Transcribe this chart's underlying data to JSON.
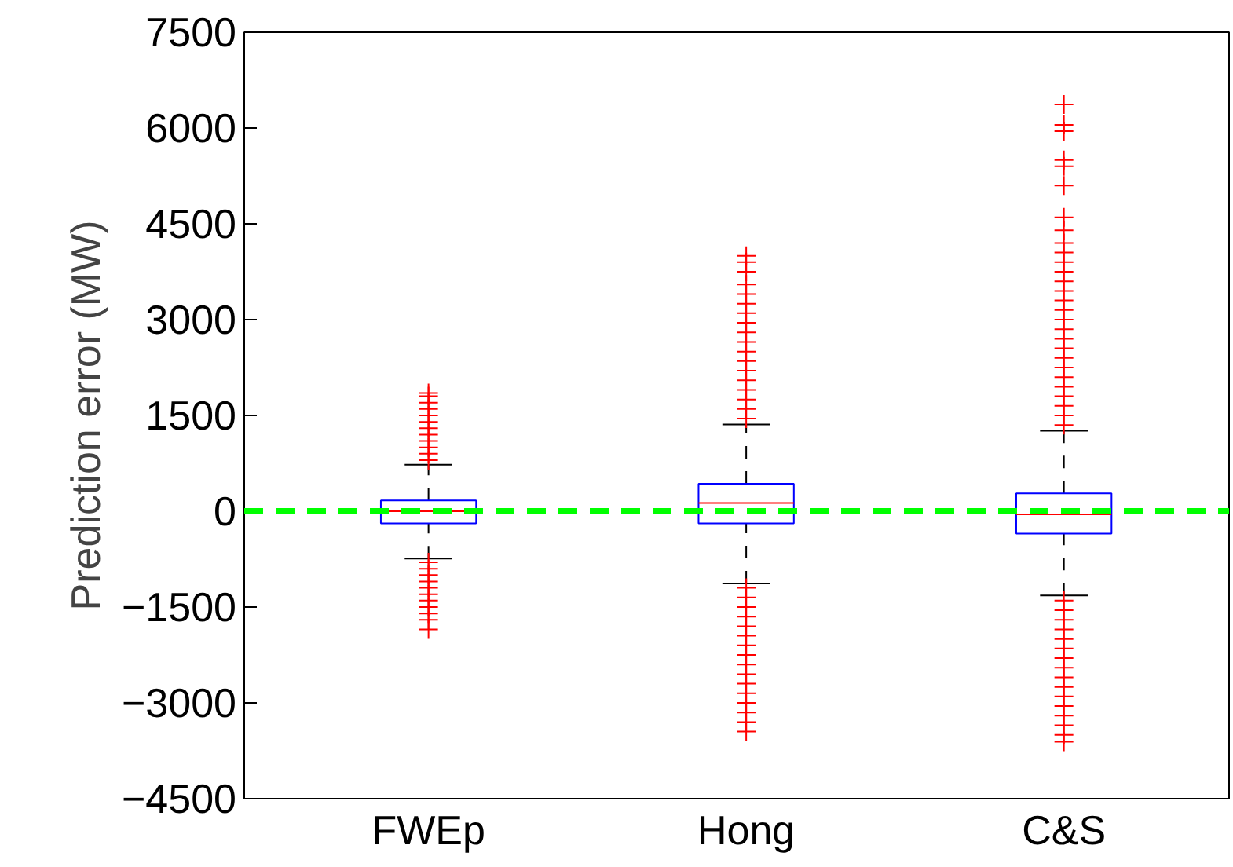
{
  "chart_data": {
    "type": "box",
    "ylabel": "Prediction error (MW)",
    "categories": [
      "FWEp",
      "Hong",
      "C&S"
    ],
    "series": [
      {
        "color": "#0000ff",
        "boxes": [
          {
            "low": -740,
            "q1": -190,
            "median": 0,
            "q3": 170,
            "high": 730,
            "outliers": [
              800,
              900,
              1000,
              1100,
              1200,
              1300,
              1400,
              1500,
              1600,
              1700,
              1800,
              1850,
              -800,
              -900,
              -1000,
              -1100,
              -1200,
              -1300,
              -1400,
              -1500,
              -1600,
              -1700,
              -1850
            ]
          },
          {
            "low": -1130,
            "q1": -190,
            "median": 130,
            "q3": 430,
            "high": 1360,
            "outliers": [
              1450,
              1600,
              1750,
              1900,
              2050,
              2200,
              2350,
              2500,
              2650,
              2800,
              2950,
              3100,
              3250,
              3400,
              3550,
              3750,
              3900,
              4000,
              -1200,
              -1350,
              -1500,
              -1650,
              -1800,
              -1950,
              -2100,
              -2250,
              -2400,
              -2550,
              -2700,
              -2850,
              -3000,
              -3150,
              -3300,
              -3450
            ]
          },
          {
            "low": -1320,
            "q1": -350,
            "median": -50,
            "q3": 280,
            "high": 1260,
            "outliers": [
              1350,
              1500,
              1650,
              1800,
              1950,
              2100,
              2250,
              2400,
              2550,
              2700,
              2850,
              3000,
              3150,
              3300,
              3450,
              3600,
              3750,
              3900,
              4050,
              4200,
              4400,
              4600,
              5100,
              5400,
              5500,
              5950,
              6050,
              6370,
              -1400,
              -1550,
              -1700,
              -1850,
              -2000,
              -2150,
              -2300,
              -2450,
              -2600,
              -2750,
              -2900,
              -3050,
              -3200,
              -3350,
              -3500,
              -3610
            ]
          }
        ]
      }
    ],
    "ylim": [
      -4500,
      7500
    ],
    "yticks": [
      {
        "value": -4500,
        "label": "−4500"
      },
      {
        "value": -3000,
        "label": "−3000"
      },
      {
        "value": -1500,
        "label": "−1500"
      },
      0,
      1500,
      3000,
      4500,
      6000,
      7500
    ],
    "ref_lines": [
      {
        "axis": "y",
        "value": 0,
        "label": null,
        "color": "#00ff00",
        "line_style": "dashed"
      }
    ],
    "grid": false
  }
}
